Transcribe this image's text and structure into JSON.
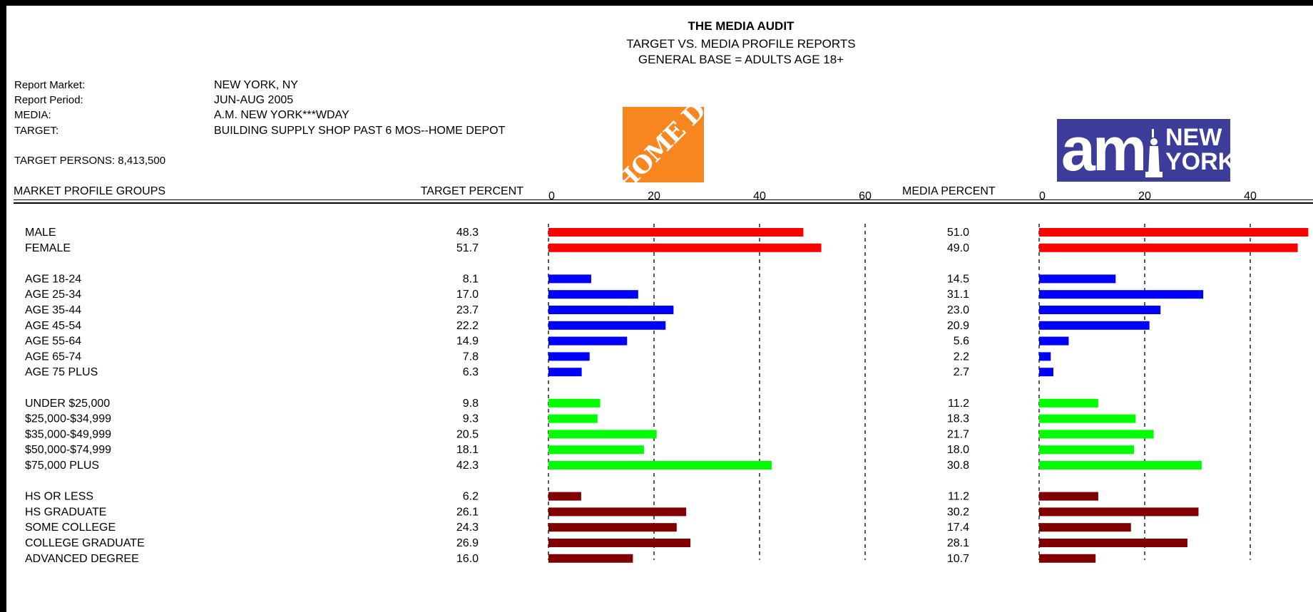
{
  "header": {
    "title": "THE MEDIA AUDIT",
    "subtitle": "TARGET VS. MEDIA PROFILE REPORTS",
    "base": "GENERAL BASE = ADULTS AGE 18+"
  },
  "report": {
    "market_label": "Report Market:",
    "market_value": "NEW YORK, NY",
    "period_label": "Report Period:",
    "period_value": "JUN-AUG 2005",
    "media_label": "MEDIA:",
    "media_value": "A.M. NEW YORK***WDAY",
    "target_label": "TARGET:",
    "target_value": "BUILDING SUPPLY SHOP PAST 6 MOS--HOME DEPOT",
    "persons": "TARGET PERSONS: 8,413,500"
  },
  "logos": {
    "home_depot": "THE HOME DEPOT",
    "am_new_york_am": "am",
    "am_new_york_new": "NEW",
    "am_new_york_york": "YORK"
  },
  "columns": {
    "groups": "MARKET PROFILE GROUPS",
    "target_percent": "TARGET PERCENT",
    "media_percent": "MEDIA PERCENT"
  },
  "colors": {
    "gender": "#ff0000",
    "age": "#0000ff",
    "income": "#00ff00",
    "education": "#800000"
  },
  "chart_data": [
    {
      "type": "bar",
      "orientation": "horizontal",
      "title": "TARGET PERCENT",
      "xlim": [
        0,
        60
      ],
      "ticks": [
        "0",
        "20",
        "40",
        "60"
      ],
      "grid": true,
      "groups": [
        {
          "color_key": "gender",
          "rows": [
            {
              "label": "MALE",
              "value": 48.3,
              "text": "48.3"
            },
            {
              "label": "FEMALE",
              "value": 51.7,
              "text": "51.7"
            }
          ]
        },
        {
          "color_key": "age",
          "rows": [
            {
              "label": "AGE 18-24",
              "value": 8.1,
              "text": "8.1"
            },
            {
              "label": "AGE 25-34",
              "value": 17.0,
              "text": "17.0"
            },
            {
              "label": "AGE 35-44",
              "value": 23.7,
              "text": "23.7"
            },
            {
              "label": "AGE 45-54",
              "value": 22.2,
              "text": "22.2"
            },
            {
              "label": "AGE 55-64",
              "value": 14.9,
              "text": "14.9"
            },
            {
              "label": "AGE 65-74",
              "value": 7.8,
              "text": "7.8"
            },
            {
              "label": "AGE 75 PLUS",
              "value": 6.3,
              "text": "6.3"
            }
          ]
        },
        {
          "color_key": "income",
          "rows": [
            {
              "label": "UNDER $25,000",
              "value": 9.8,
              "text": "9.8"
            },
            {
              "label": "$25,000-$34,999",
              "value": 9.3,
              "text": "9.3"
            },
            {
              "label": "$35,000-$49,999",
              "value": 20.5,
              "text": "20.5"
            },
            {
              "label": "$50,000-$74,999",
              "value": 18.1,
              "text": "18.1"
            },
            {
              "label": "$75,000 PLUS",
              "value": 42.3,
              "text": "42.3"
            }
          ]
        },
        {
          "color_key": "education",
          "rows": [
            {
              "label": "HS OR LESS",
              "value": 6.2,
              "text": "6.2"
            },
            {
              "label": "HS GRADUATE",
              "value": 26.1,
              "text": "26.1"
            },
            {
              "label": "SOME COLLEGE",
              "value": 24.3,
              "text": "24.3"
            },
            {
              "label": "COLLEGE GRADUATE",
              "value": 26.9,
              "text": "26.9"
            },
            {
              "label": "ADVANCED DEGREE",
              "value": 16.0,
              "text": "16.0"
            }
          ]
        }
      ]
    },
    {
      "type": "bar",
      "orientation": "horizontal",
      "title": "MEDIA PERCENT",
      "xlim": [
        0,
        60
      ],
      "ticks": [
        "0",
        "20",
        "40"
      ],
      "grid": true,
      "groups": [
        {
          "color_key": "gender",
          "rows": [
            {
              "label": "MALE",
              "value": 51.0,
              "text": "51.0"
            },
            {
              "label": "FEMALE",
              "value": 49.0,
              "text": "49.0"
            }
          ]
        },
        {
          "color_key": "age",
          "rows": [
            {
              "label": "AGE 18-24",
              "value": 14.5,
              "text": "14.5"
            },
            {
              "label": "AGE 25-34",
              "value": 31.1,
              "text": "31.1"
            },
            {
              "label": "AGE 35-44",
              "value": 23.0,
              "text": "23.0"
            },
            {
              "label": "AGE 45-54",
              "value": 20.9,
              "text": "20.9"
            },
            {
              "label": "AGE 55-64",
              "value": 5.6,
              "text": "5.6"
            },
            {
              "label": "AGE 65-74",
              "value": 2.2,
              "text": "2.2"
            },
            {
              "label": "AGE 75 PLUS",
              "value": 2.7,
              "text": "2.7"
            }
          ]
        },
        {
          "color_key": "income",
          "rows": [
            {
              "label": "UNDER $25,000",
              "value": 11.2,
              "text": "11.2"
            },
            {
              "label": "$25,000-$34,999",
              "value": 18.3,
              "text": "18.3"
            },
            {
              "label": "$35,000-$49,999",
              "value": 21.7,
              "text": "21.7"
            },
            {
              "label": "$50,000-$74,999",
              "value": 18.0,
              "text": "18.0"
            },
            {
              "label": "$75,000 PLUS",
              "value": 30.8,
              "text": "30.8"
            }
          ]
        },
        {
          "color_key": "education",
          "rows": [
            {
              "label": "HS OR LESS",
              "value": 11.2,
              "text": "11.2"
            },
            {
              "label": "HS GRADUATE",
              "value": 30.2,
              "text": "30.2"
            },
            {
              "label": "SOME COLLEGE",
              "value": 17.4,
              "text": "17.4"
            },
            {
              "label": "COLLEGE GRADUATE",
              "value": 28.1,
              "text": "28.1"
            },
            {
              "label": "ADVANCED DEGREE",
              "value": 10.7,
              "text": "10.7"
            }
          ]
        }
      ]
    }
  ]
}
